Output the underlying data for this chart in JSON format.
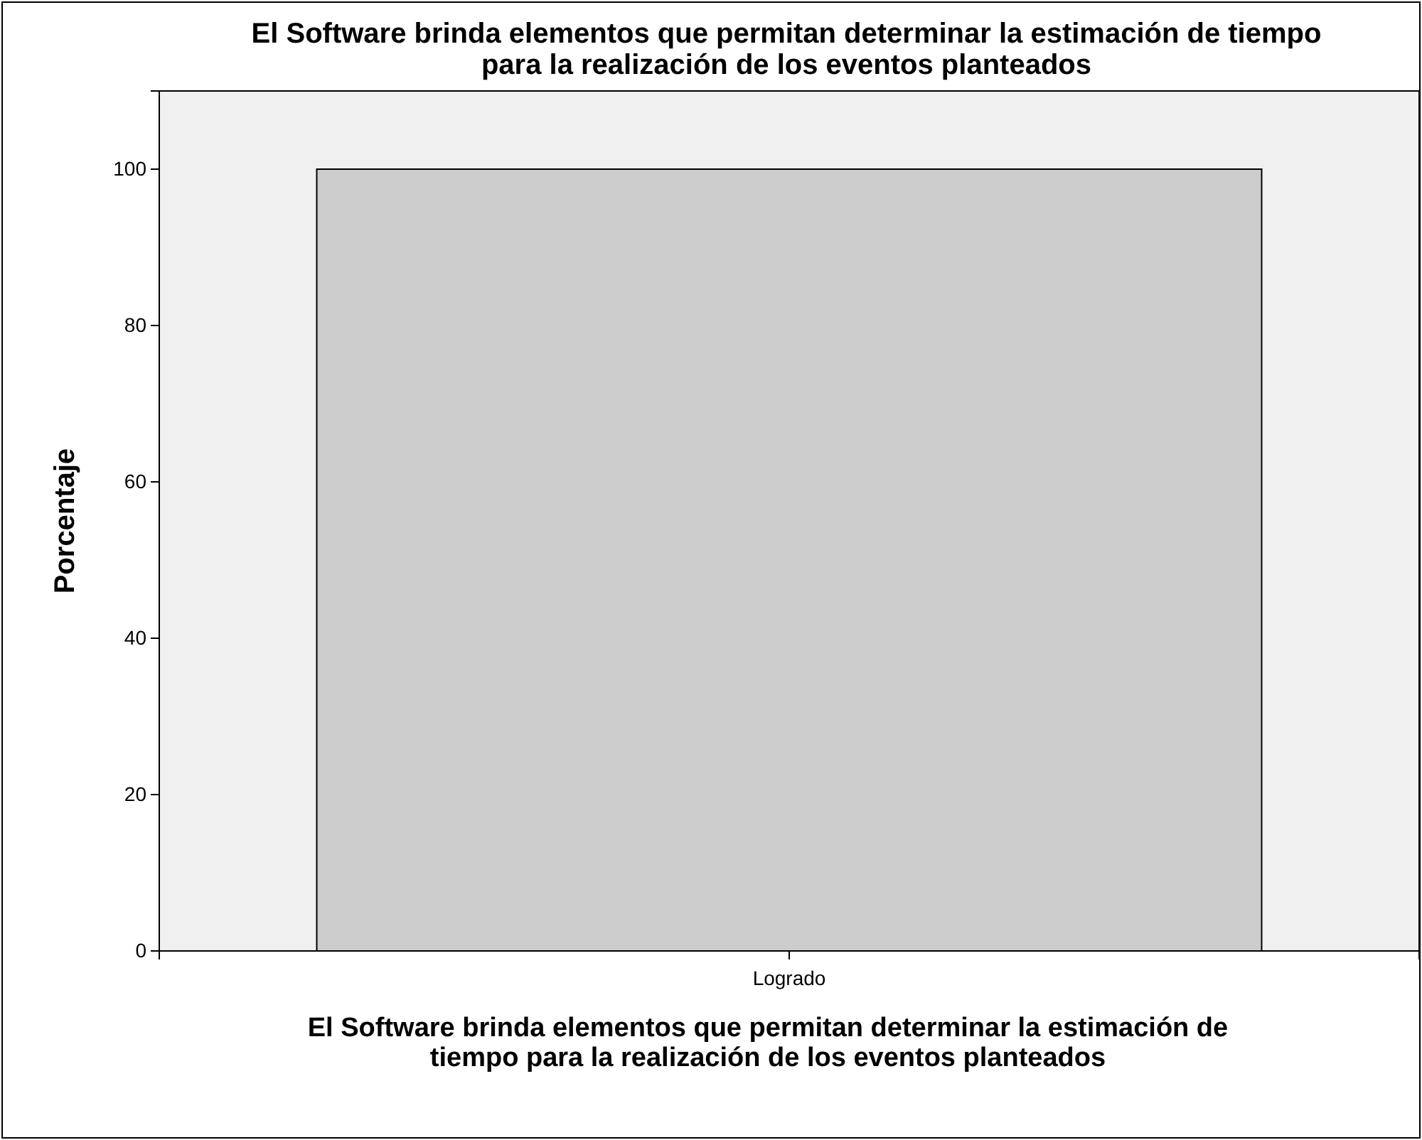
{
  "chart_data": {
    "type": "bar",
    "title": "El Software brinda elementos que permitan determinar la estimación de tiempo para la realización de los eventos planteados",
    "xlabel": "El Software brinda elementos que permitan determinar la estimación de tiempo para la realización de los eventos planteados",
    "ylabel": "Porcentaje",
    "categories": [
      "Logrado"
    ],
    "values": [
      100
    ],
    "color": "#cccccc",
    "ylim": [
      0,
      110
    ],
    "yticks": [
      0,
      20,
      40,
      60,
      80,
      100
    ],
    "grid": false
  }
}
